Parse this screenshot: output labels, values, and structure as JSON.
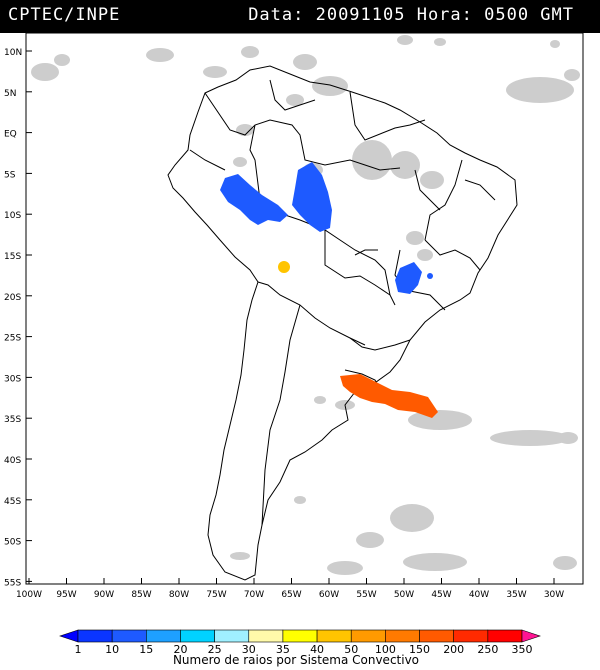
{
  "header": {
    "title": "CPTEC/INPE",
    "info": "Data: 20091105 Hora: 0500 GMT"
  },
  "map": {
    "lat_labels": [
      "10N",
      "5N",
      "EQ",
      "5S",
      "10S",
      "15S",
      "20S",
      "25S",
      "30S",
      "35S",
      "40S",
      "45S",
      "50S",
      "55S"
    ],
    "lon_labels": [
      "100W",
      "95W",
      "90W",
      "85W",
      "80W",
      "75W",
      "70W",
      "65W",
      "60W",
      "55W",
      "50W",
      "45W",
      "40W",
      "35W",
      "30W"
    ],
    "systems": [
      {
        "name": "west-amazon",
        "color": "#1e5aff",
        "value": 15
      },
      {
        "name": "central-amazon",
        "color": "#1e5aff",
        "value": 15
      },
      {
        "name": "bolivia",
        "color": "#ffc400",
        "value": 50
      },
      {
        "name": "southeast-brazil",
        "color": "#1e5aff",
        "value": 15
      },
      {
        "name": "uruguay-south-brazil",
        "color": "#ff5a00",
        "value": 200
      }
    ]
  },
  "legend": {
    "levels": [
      "1",
      "10",
      "15",
      "20",
      "25",
      "30",
      "35",
      "40",
      "50",
      "100",
      "150",
      "200",
      "250",
      "350"
    ],
    "colors": [
      "#0000ff",
      "#0a35ff",
      "#1e5aff",
      "#1ea0ff",
      "#00d2ff",
      "#a0f0ff",
      "#fffaaa",
      "#ffff00",
      "#ffc400",
      "#ff9a00",
      "#ff7a00",
      "#ff5a00",
      "#ff2a00",
      "#ff0000",
      "#ff1493"
    ],
    "caption": "Numero de raios por Sistema Convectivo"
  }
}
